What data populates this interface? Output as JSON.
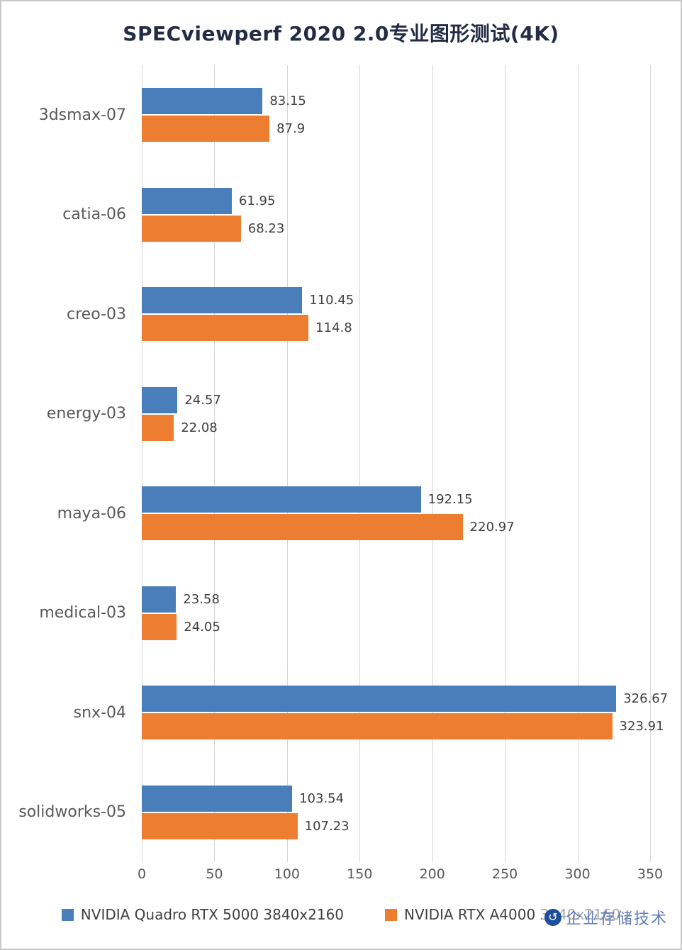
{
  "title": "SPECviewperf 2020 2.0专业图形测试(4K)",
  "watermark": {
    "logo_icon": "circle-swirl-logo",
    "text": "企业存储技术"
  },
  "chart_data": {
    "type": "bar",
    "orientation": "horizontal",
    "title": "SPECviewperf 2020 2.0专业图形测试(4K)",
    "categories": [
      "3dsmax-07",
      "catia-06",
      "creo-03",
      "energy-03",
      "maya-06",
      "medical-03",
      "snx-04",
      "solidworks-05"
    ],
    "series": [
      {
        "name": "NVIDIA Quadro RTX 5000 3840x2160",
        "color": "#4A7EBB",
        "values": [
          83.15,
          61.95,
          110.45,
          24.57,
          192.15,
          23.58,
          326.67,
          103.54
        ]
      },
      {
        "name": "NVIDIA RTX A4000 3840x2160",
        "color": "#ED7D31",
        "values": [
          87.9,
          68.23,
          114.8,
          22.08,
          220.97,
          24.05,
          323.91,
          107.23
        ]
      }
    ],
    "xlabel": "",
    "ylabel": "",
    "xlim": [
      0,
      350
    ],
    "xticks": [
      0,
      50,
      100,
      150,
      200,
      250,
      300,
      350
    ],
    "grid": true,
    "legend_position": "bottom",
    "value_labels": true
  }
}
